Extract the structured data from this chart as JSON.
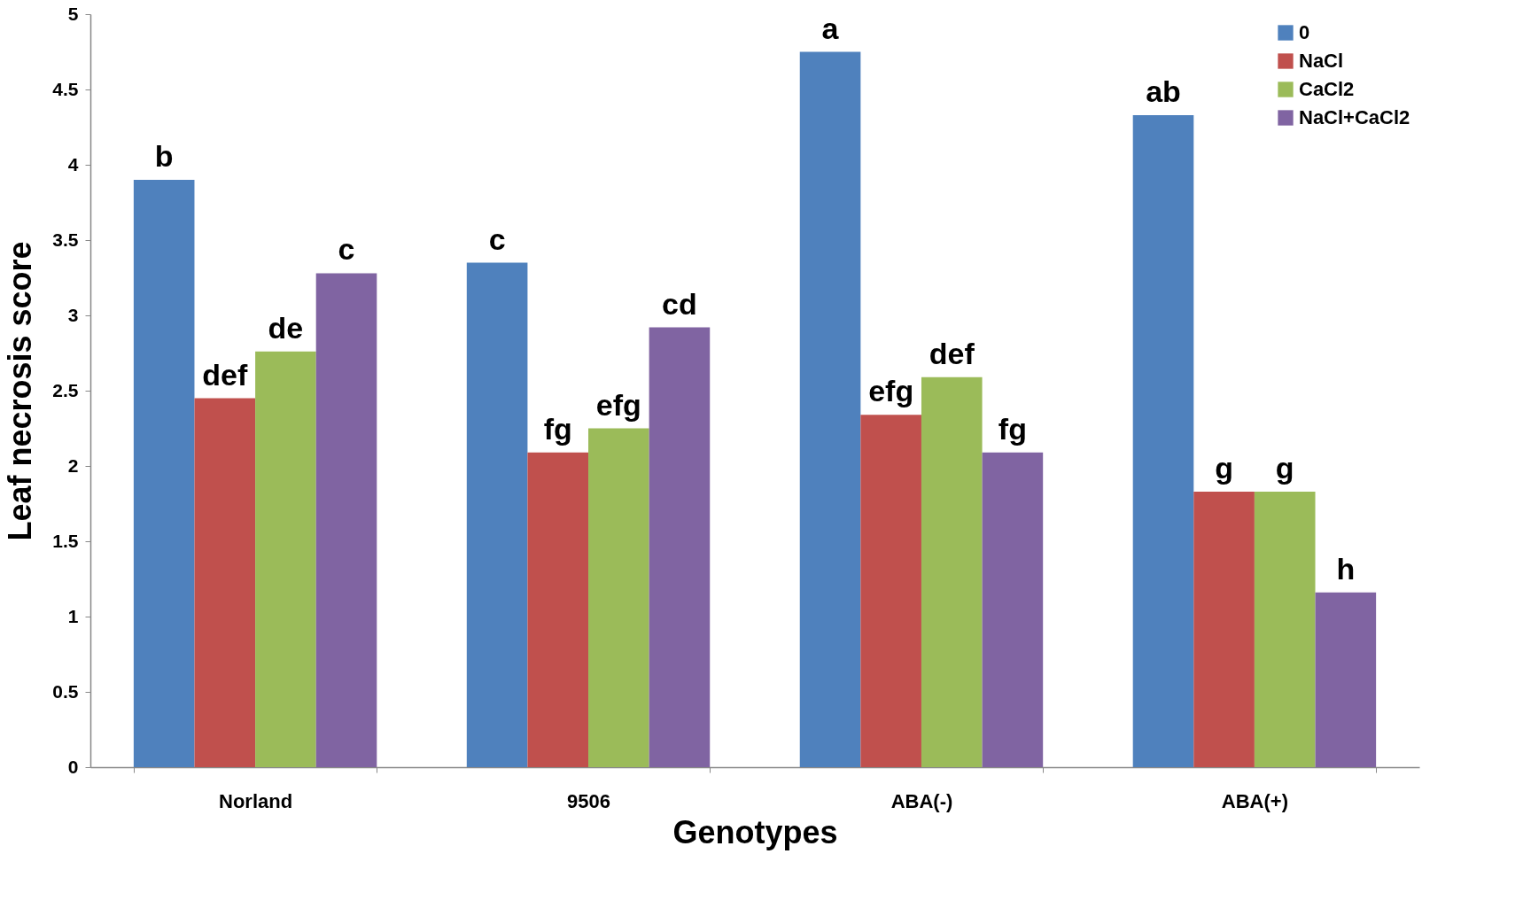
{
  "chart_data": {
    "type": "bar",
    "xlabel": "Genotypes",
    "ylabel": "Leaf necrosis score",
    "categories": [
      "Norland",
      "9506",
      "ABA(-)",
      "ABA(+)"
    ],
    "series": [
      {
        "name": "0",
        "color": "#4f81bd",
        "values": [
          3.9,
          3.35,
          4.75,
          4.33
        ],
        "value_labels": [
          "b",
          "c",
          "a",
          "ab"
        ]
      },
      {
        "name": "NaCl",
        "color": "#c0504d",
        "values": [
          2.45,
          2.09,
          2.34,
          1.83
        ],
        "value_labels": [
          "def",
          "fg",
          "efg",
          "g"
        ]
      },
      {
        "name": "CaCl2",
        "color": "#9bbb59",
        "values": [
          2.76,
          2.25,
          2.59,
          1.83
        ],
        "value_labels": [
          "de",
          "efg",
          "def",
          "g"
        ]
      },
      {
        "name": "NaCl+CaCl2",
        "color": "#8064a2",
        "values": [
          3.28,
          2.92,
          2.09,
          1.16
        ],
        "value_labels": [
          "c",
          "cd",
          "fg",
          "h"
        ]
      }
    ],
    "ylim": [
      0,
      5
    ],
    "yticks": [
      0,
      0.5,
      1,
      1.5,
      2,
      2.5,
      3,
      3.5,
      4,
      4.5,
      5
    ],
    "grid": false,
    "legend": "top right"
  }
}
